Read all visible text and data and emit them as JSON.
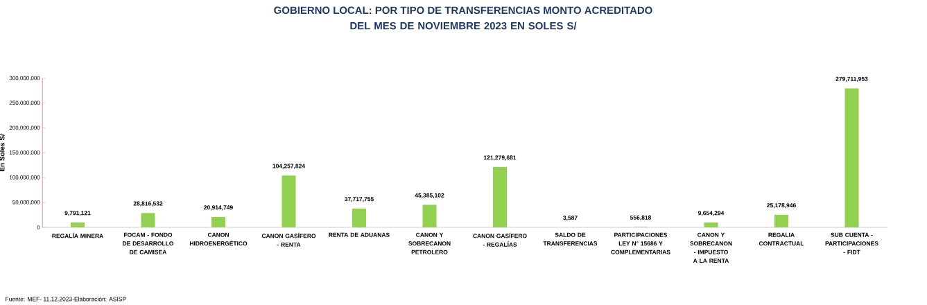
{
  "chart_data": {
    "type": "bar",
    "title": "GOBIERNO LOCAL: POR TIPO DE TRANSFERENCIAS  MONTO ACREDITADO",
    "subtitle": "DEL MES DE NOVIEMBRE 2023 EN SOLES S/",
    "ylabel": "En Soles S/",
    "annotations": [
      "Fuente: MEF- 11.12.2023-Elaboración: ASISP"
    ],
    "categories": [
      "REGALÍA MINERA",
      "FOCAM - FONDO DE DESARROLLO DE CAMISEA",
      "CANON HIDROENERGÉTICO",
      "CANON GASÍFERO - RENTA",
      "RENTA DE ADUANAS",
      "CANON Y SOBRECANON PETROLERO",
      "CANON GASÍFERO - REGALÍAS",
      "SALDO DE TRANSFERENCIAS",
      "PARTICIPACIONES LEY N° 15686 Y COMPLEMENTARIAS",
      "CANON Y SOBRECANON - IMPUESTO A LA RENTA",
      "REGALIA CONTRACTUAL",
      "SUB CUENTA - PARTICIPACIONES - FIDT"
    ],
    "values": [
      9791121,
      28816532,
      20914749,
      104257824,
      37717755,
      45385102,
      121279681,
      3587,
      556818,
      9654294,
      25178946,
      279711953
    ],
    "value_labels": [
      "9,791,121",
      "28,816,532",
      "20,914,749",
      "104,257,824",
      "37,717,755",
      "45,385,102",
      "121,279,681",
      "3,587",
      "556,818",
      "9,654,294",
      "25,178,946",
      "279,711,953"
    ],
    "color": "#92d050",
    "ylim": [
      0,
      300000000
    ],
    "yticks": [
      0,
      {
        "value": 50000000,
        "label": "50,000,000"
      },
      {
        "value": 100000000,
        "label": "100,000,000"
      },
      {
        "value": 150000000,
        "label": "150,000,000"
      },
      {
        "value": 200000000,
        "label": "200,000,000"
      },
      {
        "value": 250000000,
        "label": "250,000,000"
      },
      {
        "value": 300000000,
        "label": "300,000,000"
      }
    ],
    "grid": false
  }
}
